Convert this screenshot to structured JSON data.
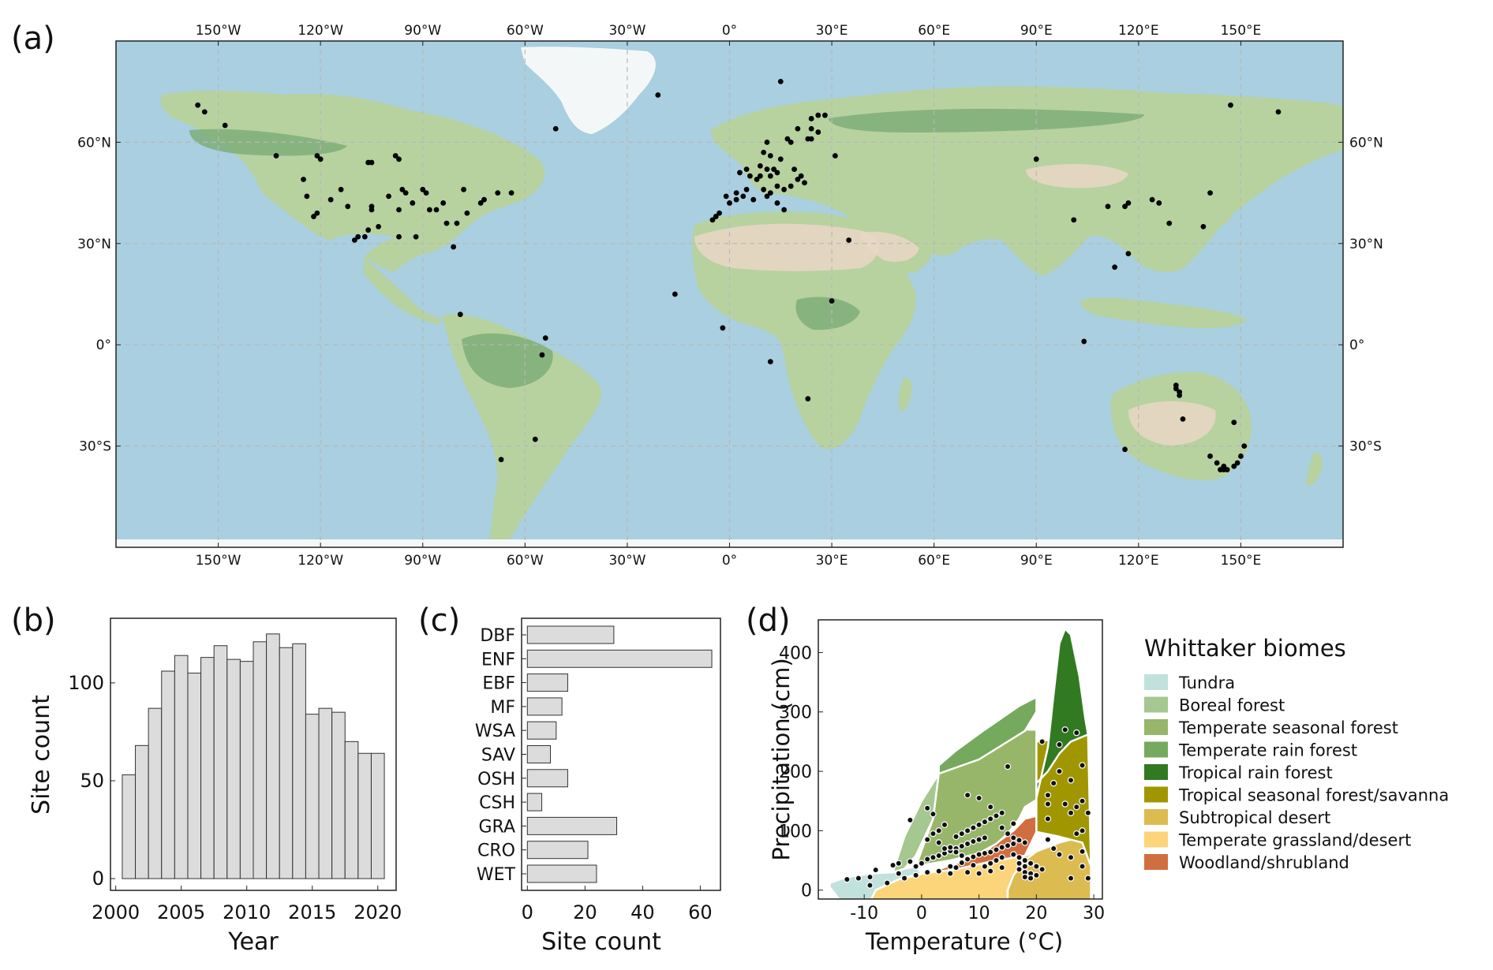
{
  "panels": {
    "a": {
      "label": "(a)",
      "lon_ticks": [
        "150°W",
        "120°W",
        "90°W",
        "60°W",
        "30°W",
        "0°",
        "30°E",
        "60°E",
        "90°E",
        "120°E",
        "150°E"
      ],
      "lat_ticks": [
        "60°N",
        "30°N",
        "0°",
        "30°S"
      ],
      "colors": {
        "ocean": "#a9cfe0",
        "land": "#b7d29f",
        "forest": "#7fae79",
        "desert": "#ead7c5",
        "ice": "#f4f7f8",
        "site": "#000000"
      }
    },
    "b": {
      "label": "(b)"
    },
    "c": {
      "label": "(c)"
    },
    "d": {
      "label": "(d)"
    }
  },
  "chart_data": [
    {
      "panel": "a",
      "type": "scatter",
      "x_range": [
        -180,
        180
      ],
      "y_range": [
        -60,
        90
      ],
      "grid": true,
      "sites": [
        [
          -156,
          71
        ],
        [
          -154,
          69
        ],
        [
          -148,
          65
        ],
        [
          -133,
          56
        ],
        [
          -121,
          56
        ],
        [
          -120,
          55
        ],
        [
          -106,
          54
        ],
        [
          -105,
          54
        ],
        [
          -98,
          56
        ],
        [
          -97,
          55
        ],
        [
          -125,
          49
        ],
        [
          -124,
          44
        ],
        [
          -122,
          38
        ],
        [
          -121,
          39
        ],
        [
          -117,
          43
        ],
        [
          -114,
          46
        ],
        [
          -112,
          41
        ],
        [
          -110,
          31
        ],
        [
          -109,
          32
        ],
        [
          -107,
          32
        ],
        [
          -106,
          34
        ],
        [
          -105,
          40
        ],
        [
          -105,
          41
        ],
        [
          -103,
          35
        ],
        [
          -100,
          44
        ],
        [
          -97,
          40
        ],
        [
          -96,
          46
        ],
        [
          -95,
          45
        ],
        [
          -93,
          42
        ],
        [
          -90,
          46
        ],
        [
          -89,
          45
        ],
        [
          -88,
          40
        ],
        [
          -86,
          40
        ],
        [
          -84,
          42
        ],
        [
          -83,
          36
        ],
        [
          -80,
          36
        ],
        [
          -78,
          46
        ],
        [
          -77,
          39
        ],
        [
          -73,
          42
        ],
        [
          -72,
          43
        ],
        [
          -68,
          45
        ],
        [
          -64,
          45
        ],
        [
          -81,
          29
        ],
        [
          -92,
          32
        ],
        [
          -97,
          32
        ],
        [
          -79,
          9
        ],
        [
          -54,
          2
        ],
        [
          -55,
          -3
        ],
        [
          -57,
          -28
        ],
        [
          -67,
          -34
        ],
        [
          -51,
          64
        ],
        [
          -21,
          74
        ],
        [
          15,
          78
        ],
        [
          24,
          67
        ],
        [
          26,
          68
        ],
        [
          28,
          68
        ],
        [
          20,
          64
        ],
        [
          17,
          61
        ],
        [
          24,
          61
        ],
        [
          23,
          61
        ],
        [
          31,
          56
        ],
        [
          10,
          57
        ],
        [
          12,
          56
        ],
        [
          13,
          52
        ],
        [
          11,
          52
        ],
        [
          14,
          51
        ],
        [
          12,
          50
        ],
        [
          9,
          50
        ],
        [
          8,
          49
        ],
        [
          6,
          50
        ],
        [
          5,
          46
        ],
        [
          4,
          44
        ],
        [
          2,
          43
        ],
        [
          -1,
          44
        ],
        [
          0,
          42
        ],
        [
          -3,
          39
        ],
        [
          -4,
          38
        ],
        [
          -5,
          37
        ],
        [
          2,
          45
        ],
        [
          10,
          46
        ],
        [
          12,
          45
        ],
        [
          16,
          46
        ],
        [
          18,
          47
        ],
        [
          20,
          49
        ],
        [
          22,
          48
        ],
        [
          7,
          43
        ],
        [
          11,
          44
        ],
        [
          14,
          42
        ],
        [
          16,
          40
        ],
        [
          5,
          52
        ],
        [
          3,
          51
        ],
        [
          9,
          53
        ],
        [
          15,
          55
        ],
        [
          19,
          52
        ],
        [
          21,
          50
        ],
        [
          18,
          60
        ],
        [
          11,
          60
        ],
        [
          14,
          47
        ],
        [
          26,
          63
        ],
        [
          24,
          64
        ],
        [
          35,
          31
        ],
        [
          -16,
          15
        ],
        [
          -2,
          5
        ],
        [
          30,
          13
        ],
        [
          12,
          -5
        ],
        [
          23,
          -16
        ],
        [
          90,
          55
        ],
        [
          101,
          37
        ],
        [
          111,
          41
        ],
        [
          116,
          41
        ],
        [
          117,
          42
        ],
        [
          124,
          43
        ],
        [
          126,
          42
        ],
        [
          129,
          36
        ],
        [
          141,
          45
        ],
        [
          139,
          35
        ],
        [
          104,
          1
        ],
        [
          113,
          23
        ],
        [
          117,
          27
        ],
        [
          147,
          71
        ],
        [
          161,
          69
        ],
        [
          131,
          -12
        ],
        [
          131,
          -13
        ],
        [
          132,
          -14
        ],
        [
          132,
          -15
        ],
        [
          133,
          -22
        ],
        [
          116,
          -31
        ],
        [
          141,
          -33
        ],
        [
          143,
          -35
        ],
        [
          145,
          -37
        ],
        [
          146,
          -37
        ],
        [
          148,
          -36
        ],
        [
          149,
          -35
        ],
        [
          150,
          -33
        ],
        [
          151,
          -30
        ],
        [
          148,
          -23
        ],
        [
          144,
          -37
        ],
        [
          145,
          -36
        ]
      ]
    },
    {
      "panel": "b",
      "type": "bar",
      "xlabel": "Year",
      "ylabel": "Site count",
      "x_ticks": [
        2000,
        2005,
        2010,
        2015,
        2020
      ],
      "y_ticks": [
        0,
        50,
        100
      ],
      "xlim": [
        1999.6,
        2021.4
      ],
      "ylim": [
        -6,
        133
      ],
      "categories": [
        2001,
        2002,
        2003,
        2004,
        2005,
        2006,
        2007,
        2008,
        2009,
        2010,
        2011,
        2012,
        2013,
        2014,
        2015,
        2016,
        2017,
        2018,
        2019,
        2020
      ],
      "values": [
        53,
        68,
        87,
        106,
        114,
        105,
        113,
        119,
        112,
        111,
        121,
        125,
        118,
        120,
        84,
        87,
        85,
        70,
        64,
        64
      ]
    },
    {
      "panel": "c",
      "type": "bar",
      "orientation": "horizontal",
      "xlabel": "Site count",
      "ylabel": "",
      "x_ticks": [
        0,
        20,
        40,
        60
      ],
      "xlim": [
        -2,
        67
      ],
      "categories": [
        "DBF",
        "ENF",
        "EBF",
        "MF",
        "WSA",
        "SAV",
        "OSH",
        "CSH",
        "GRA",
        "CRO",
        "WET"
      ],
      "values": [
        30,
        64,
        14,
        12,
        10,
        8,
        14,
        5,
        31,
        21,
        24
      ]
    },
    {
      "panel": "d",
      "type": "scatter",
      "xlabel": "Temperature (°C)",
      "ylabel": "Precipitation (cm)",
      "x_ticks": [
        -10,
        0,
        10,
        20,
        30
      ],
      "y_ticks": [
        0,
        100,
        200,
        300,
        400
      ],
      "xlim": [
        -18,
        31.5
      ],
      "ylim": [
        -15,
        455
      ],
      "legend_title": "Whittaker biomes",
      "legend_position": "right",
      "biomes": [
        {
          "name": "Tundra",
          "color": "#c1e1dc"
        },
        {
          "name": "Boreal forest",
          "color": "#a5c790"
        },
        {
          "name": "Temperate seasonal forest",
          "color": "#97b669"
        },
        {
          "name": "Temperate rain forest",
          "color": "#75a95e"
        },
        {
          "name": "Tropical rain forest",
          "color": "#317a22"
        },
        {
          "name": "Tropical seasonal forest/savanna",
          "color": "#a09700"
        },
        {
          "name": "Subtropical desert",
          "color": "#dcbb50"
        },
        {
          "name": "Temperate grassland/desert",
          "color": "#fcd57a"
        },
        {
          "name": "Woodland/shrubland",
          "color": "#d16e3f"
        }
      ],
      "points": [
        [
          -13,
          18
        ],
        [
          -11,
          20
        ],
        [
          -9,
          22
        ],
        [
          -8,
          34
        ],
        [
          -5,
          42
        ],
        [
          -4,
          45
        ],
        [
          -2,
          48
        ],
        [
          -1,
          40
        ],
        [
          0,
          45
        ],
        [
          1,
          52
        ],
        [
          2,
          55
        ],
        [
          3,
          58
        ],
        [
          4,
          62
        ],
        [
          5,
          66
        ],
        [
          6,
          70
        ],
        [
          7,
          74
        ],
        [
          8,
          78
        ],
        [
          9,
          82
        ],
        [
          10,
          85
        ],
        [
          11,
          88
        ],
        [
          5,
          40
        ],
        [
          6,
          38
        ],
        [
          7,
          46
        ],
        [
          8,
          52
        ],
        [
          9,
          56
        ],
        [
          10,
          60
        ],
        [
          11,
          62
        ],
        [
          12,
          64
        ],
        [
          13,
          68
        ],
        [
          14,
          72
        ],
        [
          15,
          75
        ],
        [
          16,
          78
        ],
        [
          6,
          90
        ],
        [
          7,
          95
        ],
        [
          8,
          100
        ],
        [
          9,
          105
        ],
        [
          10,
          110
        ],
        [
          11,
          115
        ],
        [
          12,
          120
        ],
        [
          13,
          125
        ],
        [
          4,
          110
        ],
        [
          3,
          100
        ],
        [
          2,
          95
        ],
        [
          14,
          105
        ],
        [
          15,
          95
        ],
        [
          16,
          88
        ],
        [
          17,
          84
        ],
        [
          18,
          80
        ],
        [
          16,
          60
        ],
        [
          17,
          55
        ],
        [
          18,
          50
        ],
        [
          18,
          40
        ],
        [
          17,
          35
        ],
        [
          18,
          30
        ],
        [
          19,
          28
        ],
        [
          20,
          25
        ],
        [
          19,
          20
        ],
        [
          18,
          22
        ],
        [
          17,
          45
        ],
        [
          19,
          45
        ],
        [
          20,
          40
        ],
        [
          21,
          35
        ],
        [
          8,
          30
        ],
        [
          10,
          28
        ],
        [
          12,
          32
        ],
        [
          14,
          38
        ],
        [
          13,
          50
        ],
        [
          14,
          55
        ],
        [
          12,
          45
        ],
        [
          11,
          40
        ],
        [
          9,
          42
        ],
        [
          7,
          58
        ],
        [
          6,
          64
        ],
        [
          5,
          72
        ],
        [
          3,
          80
        ],
        [
          1,
          85
        ],
        [
          -2,
          118
        ],
        [
          -6,
          12
        ],
        [
          -9,
          8
        ],
        [
          -3,
          20
        ],
        [
          -1,
          25
        ],
        [
          1,
          30
        ],
        [
          3,
          32
        ],
        [
          5,
          28
        ],
        [
          22,
          120
        ],
        [
          22,
          145
        ],
        [
          22,
          160
        ],
        [
          23,
          180
        ],
        [
          24,
          200
        ],
        [
          25,
          145
        ],
        [
          26,
          130
        ],
        [
          27,
          140
        ],
        [
          28,
          150
        ],
        [
          29,
          130
        ],
        [
          28,
          100
        ],
        [
          27,
          95
        ],
        [
          26,
          185
        ],
        [
          28,
          210
        ],
        [
          24,
          245
        ],
        [
          27,
          265
        ],
        [
          25,
          270
        ],
        [
          21,
          250
        ],
        [
          22,
          85
        ],
        [
          23,
          70
        ],
        [
          24,
          60
        ],
        [
          26,
          55
        ],
        [
          28,
          65
        ],
        [
          28,
          40
        ],
        [
          29,
          20
        ],
        [
          26,
          20
        ],
        [
          15,
          208
        ],
        [
          8,
          160
        ],
        [
          10,
          155
        ],
        [
          12,
          140
        ],
        [
          14,
          130
        ],
        [
          2,
          128
        ],
        [
          1,
          138
        ],
        [
          -4,
          28
        ],
        [
          16,
          112
        ],
        [
          4,
          70
        ]
      ]
    }
  ]
}
